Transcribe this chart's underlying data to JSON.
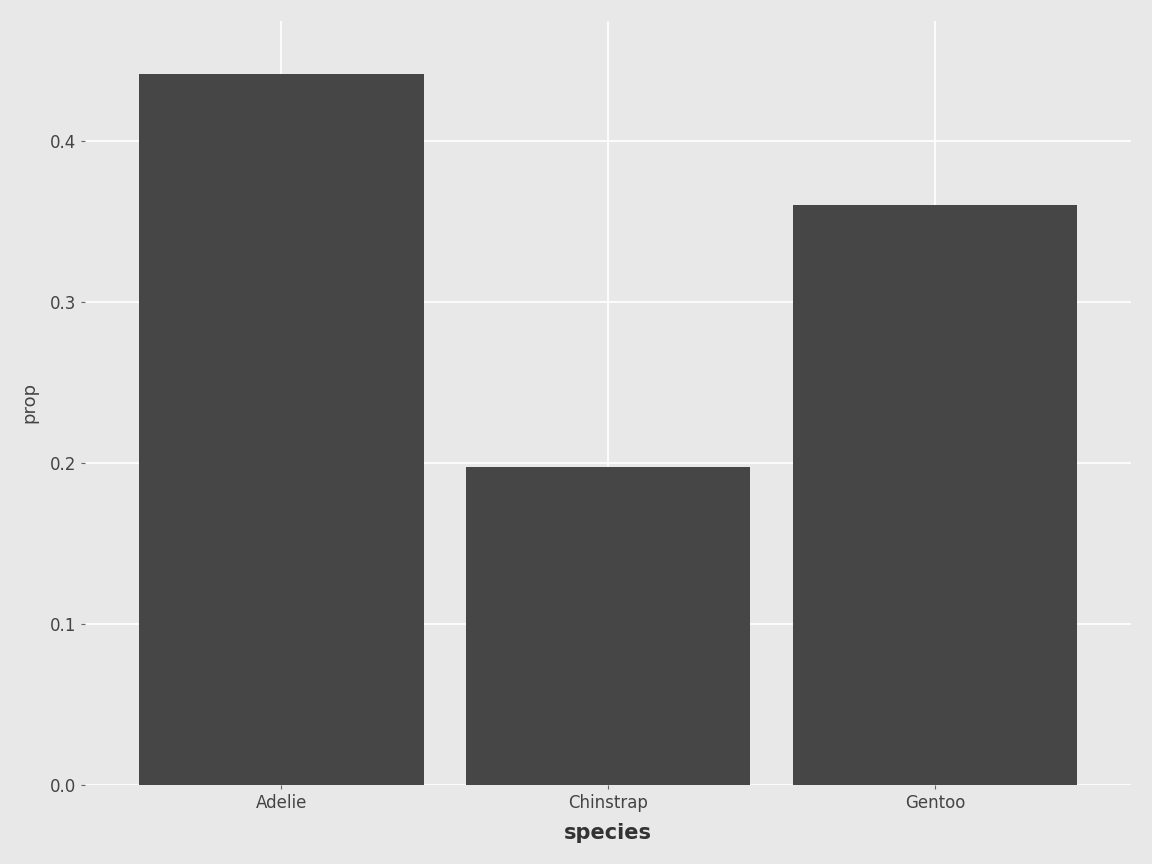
{
  "categories": [
    "Adelie",
    "Chinstrap",
    "Gentoo"
  ],
  "values": [
    0.4418604651,
    0.1976744186,
    0.3604651163
  ],
  "bar_color": "#464646",
  "background_outer": "#e8e8e8",
  "background_panel": "#e8e8e8",
  "grid_color": "#ffffff",
  "xlabel": "species",
  "ylabel": "prop",
  "xlabel_fontsize": 15,
  "ylabel_fontsize": 13,
  "tick_label_fontsize": 12,
  "ylim": [
    0,
    0.475
  ],
  "yticks": [
    0.0,
    0.1,
    0.2,
    0.3,
    0.4
  ],
  "bar_width": 0.87
}
